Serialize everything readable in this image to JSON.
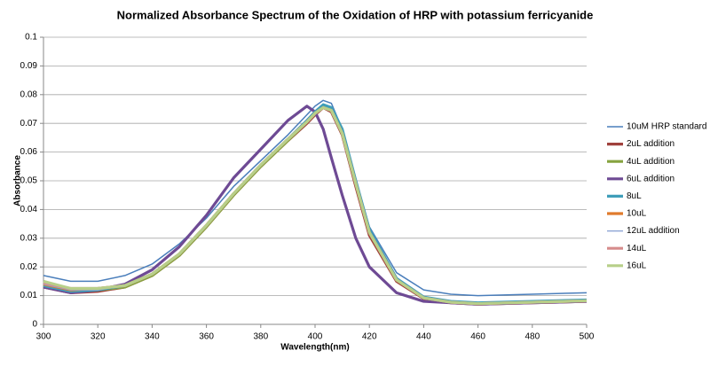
{
  "chart_data": {
    "type": "line",
    "title": "Normalized Absorbance Spectrum of the Oxidation of HRP with potassium ferricyanide",
    "x_label": "Wavelength(nm)",
    "y_label": "Absorbance",
    "x": [
      300,
      310,
      320,
      330,
      340,
      350,
      360,
      370,
      380,
      390,
      397,
      400,
      403,
      406,
      410,
      415,
      420,
      430,
      440,
      450,
      460,
      480,
      500
    ],
    "series": [
      {
        "name": "10uM HRP standard",
        "color": "#4a7ebb",
        "values": [
          0.017,
          0.015,
          0.015,
          0.017,
          0.021,
          0.028,
          0.037,
          0.048,
          0.057,
          0.066,
          0.073,
          0.076,
          0.078,
          0.077,
          0.068,
          0.05,
          0.034,
          0.018,
          0.012,
          0.0105,
          0.01,
          0.0105,
          0.011
        ]
      },
      {
        "name": "2uL addition",
        "color": "#a0413c",
        "values": [
          0.013,
          0.011,
          0.0115,
          0.013,
          0.017,
          0.024,
          0.034,
          0.045,
          0.055,
          0.064,
          0.07,
          0.073,
          0.0755,
          0.074,
          0.066,
          0.048,
          0.031,
          0.015,
          0.009,
          0.0075,
          0.007,
          0.0075,
          0.008
        ]
      },
      {
        "name": "4uL addition",
        "color": "#86a33f",
        "values": [
          0.0135,
          0.0115,
          0.012,
          0.013,
          0.017,
          0.024,
          0.034,
          0.045,
          0.055,
          0.064,
          0.0705,
          0.0735,
          0.076,
          0.0745,
          0.0665,
          0.049,
          0.032,
          0.0155,
          0.0092,
          0.0077,
          0.0072,
          0.0077,
          0.0082
        ]
      },
      {
        "name": "6uL addition",
        "color": "#6e4a94",
        "values": [
          0.013,
          0.011,
          0.012,
          0.014,
          0.019,
          0.027,
          0.038,
          0.051,
          0.061,
          0.071,
          0.076,
          0.074,
          0.068,
          0.058,
          0.045,
          0.03,
          0.02,
          0.011,
          0.008,
          0.0075,
          0.007,
          0.0075,
          0.008
        ]
      },
      {
        "name": "8uL",
        "color": "#3f9eb9",
        "values": [
          0.0135,
          0.0115,
          0.012,
          0.0135,
          0.0175,
          0.0245,
          0.0345,
          0.0455,
          0.0555,
          0.0645,
          0.071,
          0.074,
          0.0765,
          0.0755,
          0.068,
          0.05,
          0.033,
          0.016,
          0.0095,
          0.008,
          0.0075,
          0.008,
          0.0085
        ]
      },
      {
        "name": "10uL",
        "color": "#e07b2c",
        "values": [
          0.014,
          0.012,
          0.0125,
          0.0135,
          0.0175,
          0.0245,
          0.0345,
          0.0455,
          0.0555,
          0.0645,
          0.0705,
          0.0735,
          0.0755,
          0.0745,
          0.0665,
          0.049,
          0.032,
          0.0155,
          0.0092,
          0.0077,
          0.0072,
          0.0077,
          0.0082
        ]
      },
      {
        "name": "12uL addition",
        "color": "#92a9d6",
        "values": [
          0.014,
          0.012,
          0.012,
          0.0135,
          0.0175,
          0.0245,
          0.0345,
          0.0455,
          0.0555,
          0.0645,
          0.0705,
          0.0735,
          0.0755,
          0.0745,
          0.067,
          0.049,
          0.032,
          0.0155,
          0.0092,
          0.0077,
          0.0072,
          0.0077,
          0.0082
        ]
      },
      {
        "name": "14uL",
        "color": "#d68c8c",
        "values": [
          0.0145,
          0.0125,
          0.0125,
          0.0135,
          0.0175,
          0.0245,
          0.0345,
          0.0455,
          0.0555,
          0.0645,
          0.0705,
          0.0735,
          0.0755,
          0.0745,
          0.0665,
          0.049,
          0.032,
          0.0155,
          0.0092,
          0.0077,
          0.0072,
          0.0077,
          0.0082
        ]
      },
      {
        "name": "16uL",
        "color": "#b7cf89",
        "values": [
          0.015,
          0.0125,
          0.0125,
          0.0135,
          0.0175,
          0.0245,
          0.0345,
          0.0455,
          0.0555,
          0.0645,
          0.0705,
          0.0735,
          0.0755,
          0.0745,
          0.0665,
          0.049,
          0.032,
          0.0155,
          0.0092,
          0.0077,
          0.0072,
          0.0077,
          0.0082
        ]
      }
    ],
    "xlim": [
      300,
      500
    ],
    "xticks": [
      300,
      320,
      340,
      360,
      380,
      400,
      420,
      440,
      460,
      480,
      500
    ],
    "ylim": [
      0,
      0.1
    ],
    "yticks": [
      0,
      0.01,
      0.02,
      0.03,
      0.04,
      0.05,
      0.06,
      0.07,
      0.08,
      0.09,
      0.1
    ],
    "grid": true,
    "legend": "right"
  }
}
